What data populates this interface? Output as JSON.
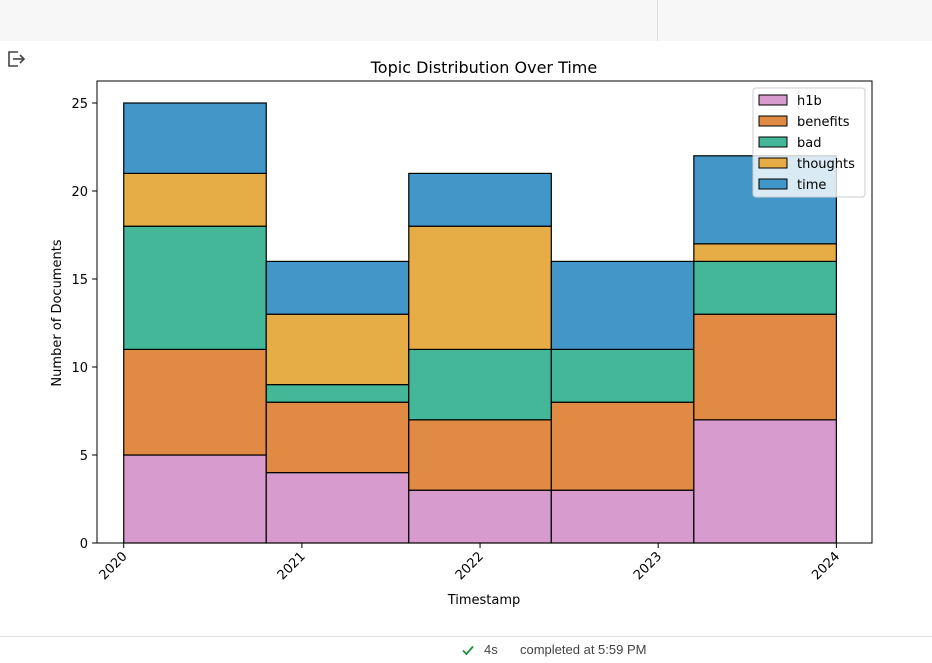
{
  "status": {
    "duration": "4s",
    "message": "completed at 5:59 PM"
  },
  "chart_data": {
    "type": "bar",
    "stacked": true,
    "title": "Topic Distribution Over Time",
    "xlabel": "Timestamp",
    "ylabel": "Number of Documents",
    "x_ticks": [
      "2020",
      "2021",
      "2022",
      "2023",
      "2024"
    ],
    "ylim": [
      0,
      26.25
    ],
    "y_ticks": [
      0,
      5,
      10,
      15,
      20,
      25
    ],
    "xlim": [
      2019.85,
      2024.2
    ],
    "bin_edges": [
      2020.0,
      2020.8,
      2021.6,
      2022.4,
      2023.2,
      2024.0
    ],
    "legend_position": "top-right",
    "grid": false,
    "series": [
      {
        "name": "h1b",
        "color": "#d89bcd",
        "values": [
          5,
          4,
          3,
          3,
          7
        ]
      },
      {
        "name": "benefits",
        "color": "#e08a44",
        "values": [
          6,
          4,
          4,
          5,
          6
        ]
      },
      {
        "name": "bad",
        "color": "#44b799",
        "values": [
          7,
          1,
          4,
          3,
          3
        ]
      },
      {
        "name": "thoughts",
        "color": "#e6ac45",
        "values": [
          3,
          4,
          7,
          0,
          1
        ]
      },
      {
        "name": "time",
        "color": "#4396c8",
        "values": [
          4,
          3,
          3,
          5,
          5
        ]
      }
    ]
  }
}
